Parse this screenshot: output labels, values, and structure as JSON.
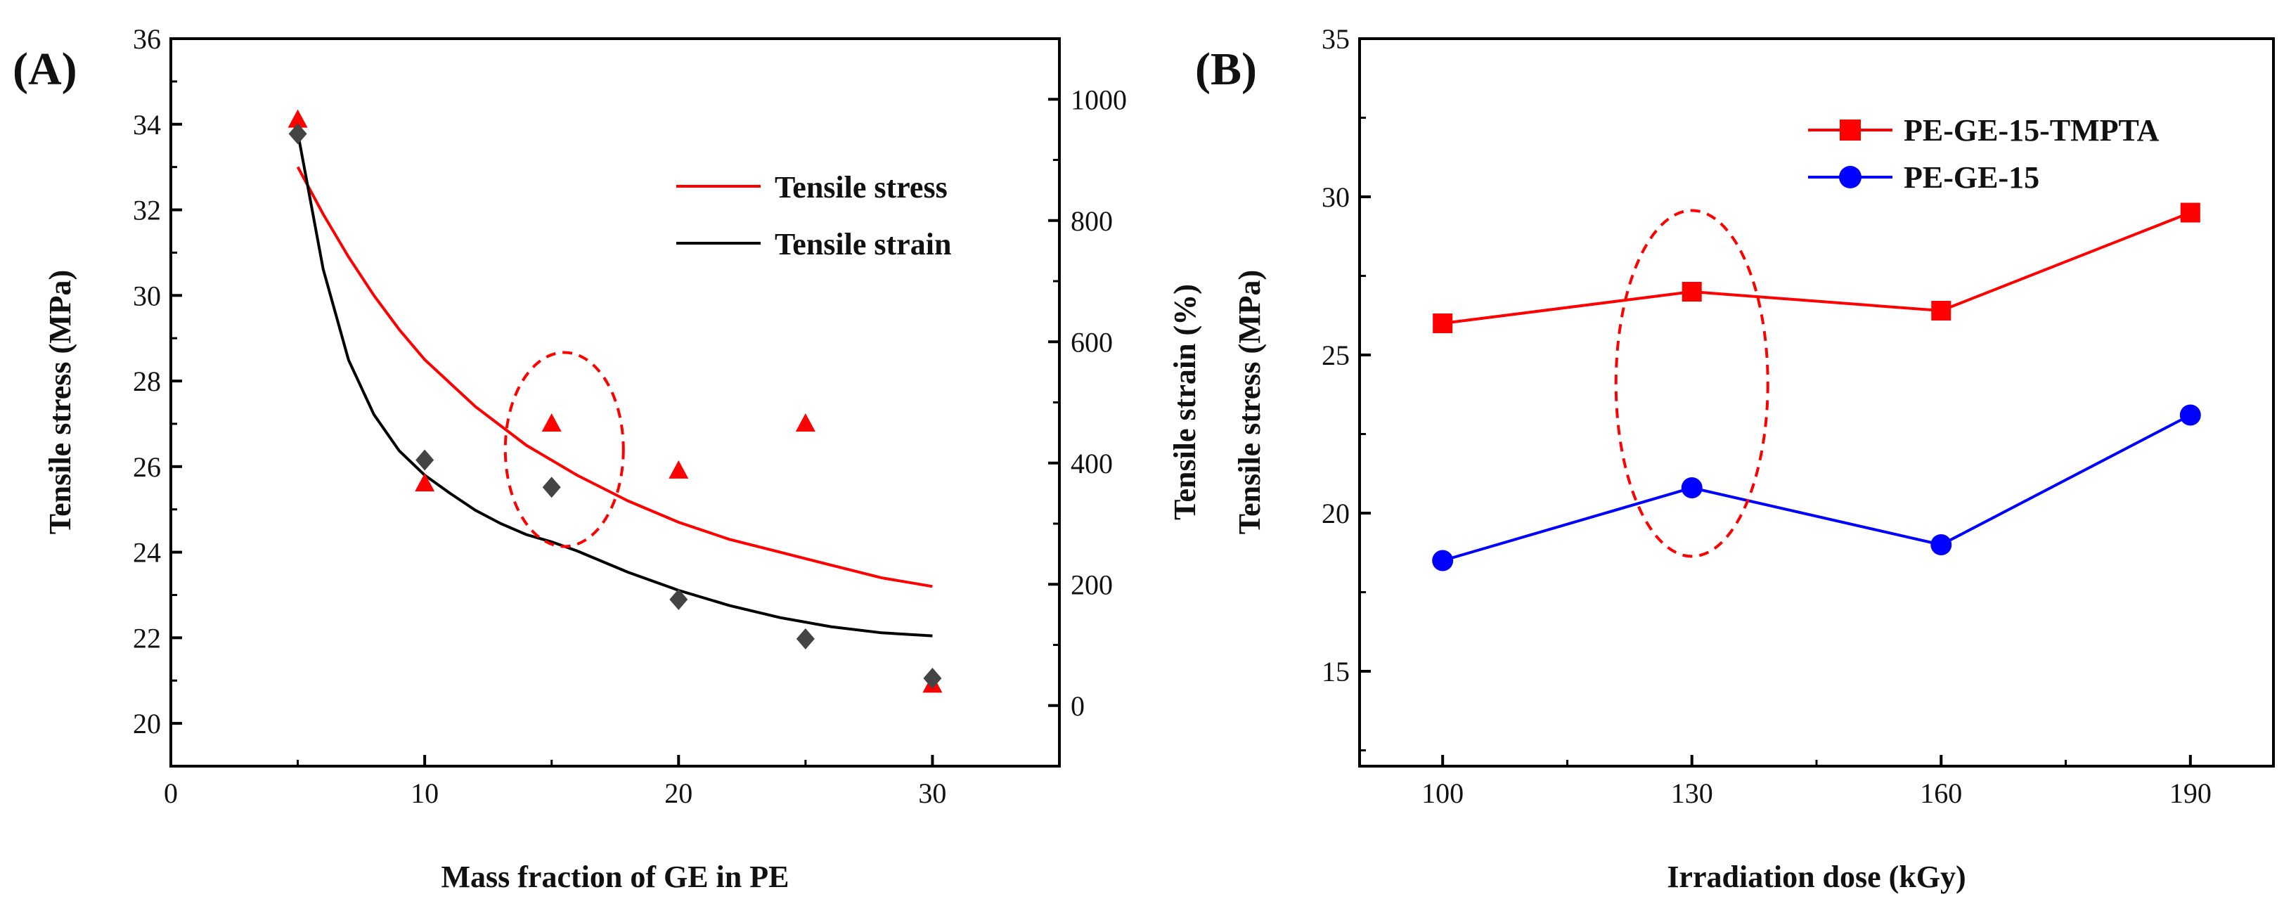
{
  "chart_data": [
    {
      "type": "scatter",
      "panel_label": "(A)",
      "xlabel": "Mass fraction of GE in PE",
      "ylabel": "Tensile stress (MPa)",
      "y2label": "Tensile strain (%)",
      "xlim": [
        0,
        35
      ],
      "ylim": [
        19,
        36
      ],
      "y2lim": [
        -100,
        1100
      ],
      "xticks": [
        0,
        10,
        20,
        30
      ],
      "yticks": [
        20,
        22,
        24,
        26,
        28,
        30,
        32,
        34,
        36
      ],
      "y2ticks": [
        0,
        200,
        400,
        600,
        800,
        1000
      ],
      "series": [
        {
          "name": "Tensile stress",
          "axis": "left",
          "marker": "triangle",
          "color": "#ff0000",
          "x": [
            5,
            10,
            15,
            20,
            25,
            30
          ],
          "values": [
            34.1,
            25.6,
            27.0,
            25.9,
            27.0,
            20.9
          ],
          "fit": {
            "x": [
              5,
              6,
              7,
              8,
              9,
              10,
              12,
              14,
              16,
              18,
              20,
              22,
              24,
              26,
              28,
              30
            ],
            "values": [
              33.0,
              31.9,
              30.9,
              30.0,
              29.2,
              28.5,
              27.4,
              26.5,
              25.8,
              25.2,
              24.7,
              24.3,
              24.0,
              23.7,
              23.4,
              23.2
            ]
          }
        },
        {
          "name": "Tensile strain",
          "axis": "right",
          "marker": "diamond",
          "color": "#444444",
          "x": [
            5,
            10,
            15,
            20,
            25,
            30
          ],
          "values": [
            943,
            405,
            360,
            175,
            110,
            45
          ],
          "fit": {
            "x": [
              5,
              6,
              7,
              8,
              9,
              10,
              11,
              12,
              13,
              14,
              15,
              16,
              18,
              20,
              22,
              24,
              26,
              28,
              30
            ],
            "values": [
              945,
              720,
              570,
              480,
              420,
              380,
              350,
              322,
              300,
              282,
              270,
              255,
              220,
              190,
              165,
              145,
              130,
              120,
              115
            ]
          }
        }
      ],
      "legend": [
        {
          "label": "Tensile stress",
          "color": "#ff0000"
        },
        {
          "label": "Tensile strain",
          "color": "#000000"
        }
      ],
      "annotation": {
        "shape": "dashed-ellipse",
        "color": "#ff0000",
        "center_x": 15.5,
        "center_y": 26.4
      }
    },
    {
      "type": "line",
      "panel_label": "(B)",
      "xlabel": "Irradiation dose (kGy)",
      "ylabel": "Tensile stress (MPa)",
      "categories": [
        "100",
        "130",
        "160",
        "190"
      ],
      "xticks": [
        100,
        130,
        160,
        190
      ],
      "xlim": [
        90,
        200
      ],
      "ylim": [
        12,
        35
      ],
      "yticks": [
        15,
        20,
        25,
        30,
        35
      ],
      "series": [
        {
          "name": "PE-GE-15-TMPTA",
          "marker": "square",
          "color": "#ff0000",
          "x": [
            100,
            130,
            160,
            190
          ],
          "values": [
            26.0,
            27.0,
            26.4,
            29.5
          ]
        },
        {
          "name": "PE-GE-15",
          "marker": "circle",
          "color": "#0000ff",
          "x": [
            100,
            130,
            160,
            190
          ],
          "values": [
            18.5,
            20.8,
            19.0,
            23.1
          ]
        }
      ],
      "annotation": {
        "shape": "dashed-ellipse",
        "color": "#ff0000",
        "center_x": 130,
        "center_y": 24.1
      }
    }
  ]
}
